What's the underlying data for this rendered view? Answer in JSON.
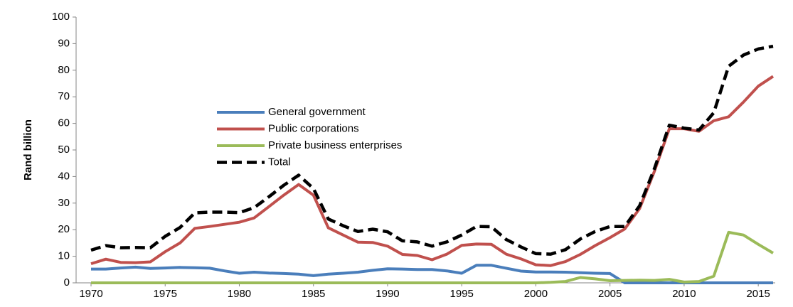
{
  "chart_data": {
    "type": "line",
    "y_label": "Rand billion",
    "x": [
      1970,
      1971,
      1972,
      1973,
      1974,
      1975,
      1976,
      1977,
      1978,
      1979,
      1980,
      1981,
      1982,
      1983,
      1984,
      1985,
      1986,
      1987,
      1988,
      1989,
      1990,
      1991,
      1992,
      1993,
      1994,
      1995,
      1996,
      1997,
      1998,
      1999,
      2000,
      2001,
      2002,
      2003,
      2004,
      2005,
      2006,
      2007,
      2008,
      2009,
      2010,
      2011,
      2012,
      2013,
      2014,
      2015,
      2016
    ],
    "series": [
      {
        "name": "General government",
        "color": "#4a7ebb",
        "dash": false,
        "values": [
          5.2,
          5.2,
          5.6,
          5.9,
          5.4,
          5.6,
          5.8,
          5.7,
          5.5,
          4.5,
          3.6,
          4.0,
          3.7,
          3.5,
          3.3,
          2.7,
          3.3,
          3.6,
          4.0,
          4.7,
          5.3,
          5.2,
          5.0,
          5.0,
          4.5,
          3.6,
          6.6,
          6.6,
          5.5,
          4.4,
          4.1,
          4.1,
          4.0,
          3.8,
          3.6,
          3.5,
          0,
          0,
          0,
          0,
          0,
          0,
          0,
          0,
          0,
          0,
          0
        ]
      },
      {
        "name": "Public corporations",
        "color": "#c0504d",
        "dash": false,
        "values": [
          7.2,
          8.9,
          7.7,
          7.6,
          7.9,
          11.7,
          15,
          20.5,
          21.2,
          22,
          22.8,
          24.4,
          28.7,
          33,
          37,
          33,
          20.7,
          18,
          15.3,
          15.2,
          13.8,
          10.7,
          10.3,
          8.7,
          10.8,
          14.1,
          14.6,
          14.5,
          10.8,
          9,
          6.8,
          6.5,
          8,
          10.7,
          14,
          17,
          20.3,
          28,
          42,
          58,
          58,
          57,
          61,
          62.5,
          68,
          74,
          77.7
        ]
      },
      {
        "name": "Private business enterprises",
        "color": "#9bbb59",
        "dash": false,
        "values": [
          0,
          0,
          0,
          0,
          0,
          0,
          0,
          0,
          0,
          0,
          0,
          0,
          0,
          0,
          0,
          0,
          0,
          0,
          0,
          0,
          0,
          0,
          0,
          0,
          0,
          0,
          0,
          0,
          0,
          0,
          0,
          0.2,
          0.5,
          2.0,
          1.5,
          0.8,
          0.9,
          1.0,
          0.9,
          1.3,
          0.3,
          0.5,
          2.5,
          19,
          18,
          14.5,
          11.2
        ]
      },
      {
        "name": "Total",
        "color": "#000000",
        "dash": true,
        "values": [
          12.3,
          14,
          13.2,
          13.3,
          13.2,
          17.5,
          20.8,
          26.3,
          26.6,
          26.6,
          26.4,
          28.3,
          32.4,
          36.7,
          40.5,
          35.5,
          24,
          21.5,
          19.3,
          20.2,
          19.2,
          15.8,
          15.4,
          13.8,
          15.4,
          18,
          21.2,
          21.1,
          16.3,
          13.5,
          11,
          10.8,
          12.5,
          16.5,
          19.3,
          21.2,
          21.2,
          29,
          43,
          59.3,
          58.2,
          57.5,
          64,
          81.5,
          85.7,
          88,
          89
        ]
      }
    ],
    "xlim": [
      1970,
      2016
    ],
    "xticks": [
      1970,
      1975,
      1980,
      1985,
      1990,
      1995,
      2000,
      2005,
      2010,
      2015
    ],
    "ylim": [
      0,
      100
    ],
    "yticks": [
      0,
      10,
      20,
      30,
      40,
      50,
      60,
      70,
      80,
      90,
      100
    ],
    "grid": false
  }
}
